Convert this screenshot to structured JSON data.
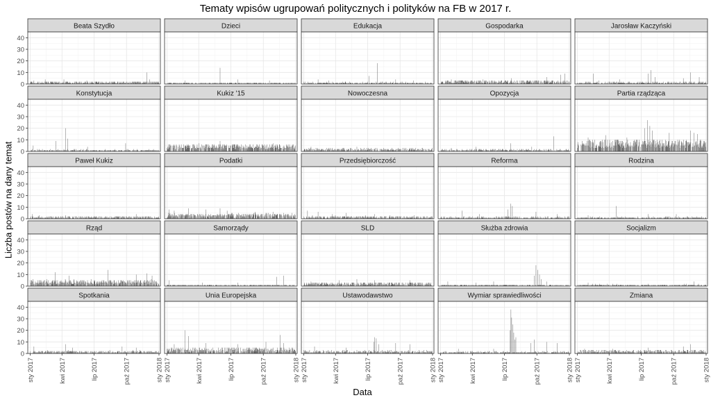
{
  "chart_data": {
    "type": "bar",
    "title": "Tematy wpisów  ugrupowań politycznych i polityków na FB w 2017 r.",
    "xlabel": "Data",
    "ylabel": "Liczba postów na dany temat",
    "ylim": [
      0,
      45
    ],
    "y_ticks": [
      "0",
      "10",
      "20",
      "30",
      "40"
    ],
    "y_tick_values": [
      0,
      10,
      20,
      30,
      40
    ],
    "x_ticks": [
      "sty 2017",
      "kwi 2017",
      "lip 2017",
      "paź 2017",
      "sty 2018"
    ],
    "x_tick_values": [
      "2017-01-01",
      "2017-04-01",
      "2017-07-01",
      "2017-10-01",
      "2018-01-01"
    ],
    "xlim": [
      "2016-12-25",
      "2018-01-05"
    ],
    "x_start_date": "2017-01-01",
    "days": 365,
    "grid": true,
    "facets": [
      {
        "name": "Beata Szydło",
        "level": 1.2,
        "noise": 2.0,
        "peaks": [
          [
            10,
            3
          ],
          [
            42,
            4
          ],
          [
            95,
            4
          ],
          [
            160,
            3
          ],
          [
            330,
            10
          ],
          [
            338,
            4
          ]
        ]
      },
      {
        "name": "Dzieci",
        "level": 0.6,
        "noise": 1.2,
        "peaks": [
          [
            50,
            3
          ],
          [
            150,
            14
          ],
          [
            200,
            4
          ],
          [
            290,
            3
          ]
        ]
      },
      {
        "name": "Edukacja",
        "level": 0.7,
        "noise": 1.4,
        "peaks": [
          [
            40,
            4
          ],
          [
            70,
            3
          ],
          [
            185,
            7
          ],
          [
            208,
            18
          ],
          [
            260,
            4
          ],
          [
            310,
            3
          ]
        ]
      },
      {
        "name": "Gospodarka",
        "level": 1.5,
        "noise": 2.8,
        "peaks": [
          [
            30,
            4
          ],
          [
            120,
            4
          ],
          [
            200,
            5
          ],
          [
            300,
            6
          ],
          [
            340,
            8
          ],
          [
            352,
            9
          ]
        ]
      },
      {
        "name": "Jarosław Kaczyński",
        "level": 0.8,
        "noise": 1.6,
        "peaks": [
          [
            45,
            9
          ],
          [
            60,
            3
          ],
          [
            120,
            4
          ],
          [
            200,
            9
          ],
          [
            208,
            12
          ],
          [
            220,
            6
          ],
          [
            300,
            5
          ],
          [
            320,
            10
          ],
          [
            345,
            6
          ]
        ]
      },
      {
        "name": "Konstytucja",
        "level": 0.7,
        "noise": 1.4,
        "peaks": [
          [
            8,
            5
          ],
          [
            72,
            9
          ],
          [
            100,
            20
          ],
          [
            106,
            11
          ],
          [
            162,
            4
          ],
          [
            270,
            7
          ]
        ]
      },
      {
        "name": "Kukiz '15",
        "level": 3.5,
        "noise": 4.5,
        "peaks": [
          [
            60,
            6
          ],
          [
            90,
            7
          ],
          [
            150,
            9
          ],
          [
            200,
            6
          ],
          [
            300,
            7
          ]
        ]
      },
      {
        "name": "Nowoczesna",
        "level": 1.2,
        "noise": 2.4,
        "peaks": [
          [
            20,
            4
          ],
          [
            80,
            3
          ],
          [
            150,
            4
          ],
          [
            300,
            3
          ]
        ]
      },
      {
        "name": "Opozycja",
        "level": 0.8,
        "noise": 1.6,
        "peaks": [
          [
            30,
            3
          ],
          [
            100,
            4
          ],
          [
            198,
            7
          ],
          [
            258,
            4
          ],
          [
            320,
            13
          ]
        ]
      },
      {
        "name": "Partia rządząca",
        "level": 5.5,
        "noise": 7.0,
        "peaks": [
          [
            30,
            12
          ],
          [
            80,
            14
          ],
          [
            140,
            12
          ],
          [
            190,
            20
          ],
          [
            198,
            27
          ],
          [
            205,
            22
          ],
          [
            212,
            18
          ],
          [
            260,
            16
          ],
          [
            320,
            18
          ],
          [
            330,
            16
          ],
          [
            340,
            15
          ]
        ]
      },
      {
        "name": "Paweł Kukiz",
        "level": 1.0,
        "noise": 2.0,
        "peaks": [
          [
            5,
            4
          ],
          [
            25,
            3
          ],
          [
            100,
            3
          ],
          [
            300,
            4
          ]
        ]
      },
      {
        "name": "Podatki",
        "level": 2.4,
        "noise": 3.5,
        "peaks": [
          [
            5,
            8
          ],
          [
            20,
            7
          ],
          [
            60,
            9
          ],
          [
            110,
            8
          ],
          [
            150,
            9
          ],
          [
            170,
            7
          ],
          [
            250,
            6
          ],
          [
            300,
            6
          ]
        ]
      },
      {
        "name": "Przedsiębiorczość",
        "level": 1.1,
        "noise": 2.2,
        "peaks": [
          [
            10,
            7
          ],
          [
            40,
            6
          ],
          [
            80,
            4
          ],
          [
            120,
            5
          ],
          [
            200,
            4
          ]
        ]
      },
      {
        "name": "Reforma",
        "level": 0.7,
        "noise": 1.6,
        "peaks": [
          [
            60,
            7
          ],
          [
            110,
            4
          ],
          [
            190,
            8
          ],
          [
            198,
            13
          ],
          [
            203,
            11
          ],
          [
            270,
            6
          ],
          [
            330,
            4
          ]
        ]
      },
      {
        "name": "Rodzina",
        "level": 0.7,
        "noise": 1.4,
        "peaks": [
          [
            30,
            3
          ],
          [
            110,
            11
          ],
          [
            200,
            4
          ],
          [
            280,
            4
          ]
        ]
      },
      {
        "name": "Rząd",
        "level": 3.0,
        "noise": 4.0,
        "peaks": [
          [
            70,
            12
          ],
          [
            110,
            9
          ],
          [
            220,
            14
          ],
          [
            300,
            10
          ],
          [
            330,
            11
          ],
          [
            345,
            9
          ]
        ]
      },
      {
        "name": "Samorządy",
        "level": 0.6,
        "noise": 1.3,
        "peaks": [
          [
            5,
            5
          ],
          [
            100,
            3
          ],
          [
            200,
            3
          ],
          [
            310,
            8
          ],
          [
            330,
            9
          ]
        ]
      },
      {
        "name": "SLD",
        "level": 1.7,
        "noise": 2.8,
        "peaks": [
          [
            20,
            4
          ],
          [
            100,
            5
          ],
          [
            150,
            6
          ],
          [
            200,
            5
          ],
          [
            300,
            5
          ]
        ]
      },
      {
        "name": "Służba zdrowia",
        "level": 0.6,
        "noise": 1.3,
        "peaks": [
          [
            20,
            4
          ],
          [
            100,
            3
          ],
          [
            150,
            4
          ],
          [
            265,
            9
          ],
          [
            270,
            18
          ],
          [
            275,
            14
          ],
          [
            280,
            10
          ],
          [
            285,
            6
          ],
          [
            300,
            4
          ]
        ]
      },
      {
        "name": "Socjalizm",
        "level": 0.7,
        "noise": 1.3,
        "peaks": [
          [
            30,
            3
          ],
          [
            100,
            2
          ],
          [
            200,
            2
          ],
          [
            330,
            4
          ]
        ]
      },
      {
        "name": "Spotkania",
        "level": 1.1,
        "noise": 2.2,
        "peaks": [
          [
            10,
            6
          ],
          [
            100,
            8
          ],
          [
            120,
            5
          ],
          [
            260,
            6
          ],
          [
            300,
            5
          ]
        ]
      },
      {
        "name": "Unia Europejska",
        "level": 2.5,
        "noise": 4.0,
        "peaks": [
          [
            20,
            8
          ],
          [
            50,
            20
          ],
          [
            60,
            15
          ],
          [
            110,
            9
          ],
          [
            200,
            8
          ],
          [
            280,
            10
          ],
          [
            320,
            16
          ],
          [
            330,
            9
          ]
        ]
      },
      {
        "name": "Ustawodawstwo",
        "level": 1.1,
        "noise": 2.4,
        "peaks": [
          [
            30,
            6
          ],
          [
            120,
            5
          ],
          [
            198,
            10
          ],
          [
            200,
            14
          ],
          [
            205,
            13
          ],
          [
            212,
            8
          ],
          [
            260,
            9
          ],
          [
            300,
            8
          ]
        ]
      },
      {
        "name": "Wymiar sprawiedliwości",
        "level": 0.8,
        "noise": 1.6,
        "peaks": [
          [
            50,
            4
          ],
          [
            150,
            4
          ],
          [
            197,
            20
          ],
          [
            199,
            38
          ],
          [
            201,
            31
          ],
          [
            204,
            25
          ],
          [
            207,
            18
          ],
          [
            210,
            12
          ],
          [
            213,
            14
          ],
          [
            255,
            9
          ],
          [
            265,
            12
          ],
          [
            300,
            10
          ],
          [
            330,
            9
          ]
        ]
      },
      {
        "name": "Zmiana",
        "level": 1.4,
        "noise": 2.6,
        "peaks": [
          [
            20,
            4
          ],
          [
            100,
            4
          ],
          [
            200,
            5
          ],
          [
            300,
            6
          ],
          [
            320,
            8
          ]
        ]
      }
    ]
  }
}
